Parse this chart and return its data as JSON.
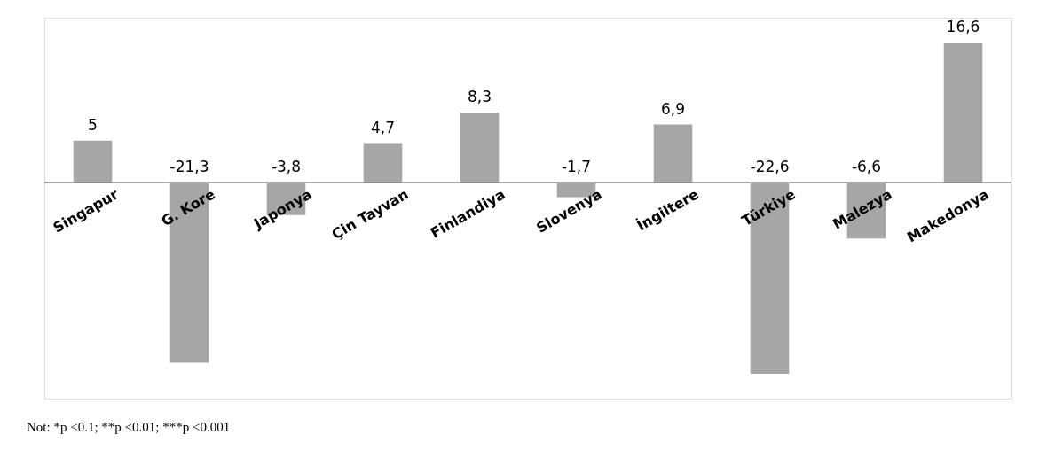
{
  "chart_data": {
    "type": "bar",
    "categories": [
      "Singapur",
      "G. Kore",
      "Japonya",
      "Çin Tayvan",
      "Finlandiya",
      "Slovenya",
      "İngiltere",
      "Türkiye",
      "Malezya",
      "Makedonya"
    ],
    "values": [
      5,
      -21.3,
      -3.8,
      4.7,
      8.3,
      -1.7,
      6.9,
      -22.6,
      -6.6,
      16.6
    ],
    "value_labels": [
      "5",
      "-21,3",
      "-3,8",
      "4,7",
      "8,3",
      "-1,7",
      "6,9",
      "-22,6",
      "-6,6",
      "16,6"
    ],
    "color": "#a6a6a6",
    "annotations": [
      "Not: *p <0.1; **p <0.01; ***p <0.001"
    ]
  }
}
